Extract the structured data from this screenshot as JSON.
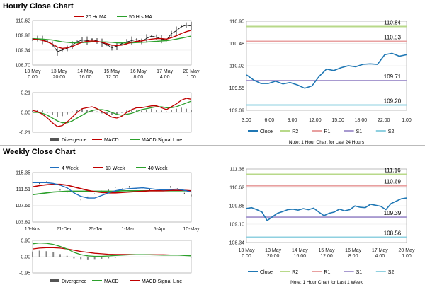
{
  "titles": {
    "hourly": "Hourly Close Chart",
    "weekly": "Weekly Close Chart"
  },
  "colors": {
    "ma_short": "#c00000",
    "ma_long": "#2ca02c",
    "week4": "#1f6fbf",
    "close": "#1f77b4",
    "r2": "#b8d98a",
    "r1": "#e8a0a0",
    "s1": "#a89ad0",
    "s2": "#8fd0e0",
    "price": "#000000",
    "divergence": "#888888"
  },
  "chart_data": [
    {
      "id": "hourly_price",
      "type": "line",
      "title": "Hourly Close Chart",
      "legend": [
        "20 Hr MA",
        "50 Hrs MA"
      ],
      "yticks": [
        "110.62",
        "109.98",
        "109.34",
        "108.70"
      ],
      "ylim": [
        108.7,
        110.62
      ],
      "xticks": [
        "13 May\n0:00",
        "13 May\n20:00",
        "14 May\n16:00",
        "15 May\n12:00",
        "16 May\n8:00",
        "17 May\n4:00",
        "20 May\n1:00"
      ],
      "series": [
        {
          "name": "Close",
          "values": [
            109.8,
            109.84,
            109.78,
            109.72,
            109.6,
            109.28,
            109.35,
            109.42,
            109.55,
            109.7,
            109.78,
            109.75,
            109.8,
            109.74,
            109.66,
            109.58,
            109.45,
            109.52,
            109.62,
            109.7,
            109.75,
            109.8,
            109.72,
            109.85,
            109.95,
            109.9,
            109.82,
            109.78,
            110.05,
            110.18,
            110.35,
            110.42,
            110.38
          ]
        },
        {
          "name": "20 Hr MA",
          "values": [
            109.82,
            109.8,
            109.76,
            109.7,
            109.6,
            109.48,
            109.42,
            109.44,
            109.5,
            109.6,
            109.68,
            109.72,
            109.74,
            109.72,
            109.68,
            109.62,
            109.56,
            109.54,
            109.56,
            109.62,
            109.68,
            109.72,
            109.74,
            109.78,
            109.82,
            109.84,
            109.84,
            109.82,
            109.88,
            109.96,
            110.06,
            110.14,
            110.2
          ]
        },
        {
          "name": "50 Hrs MA",
          "values": [
            109.84,
            109.83,
            109.82,
            109.8,
            109.78,
            109.74,
            109.7,
            109.68,
            109.66,
            109.66,
            109.67,
            109.68,
            109.7,
            109.7,
            109.7,
            109.69,
            109.68,
            109.66,
            109.65,
            109.65,
            109.66,
            109.67,
            109.68,
            109.69,
            109.71,
            109.72,
            109.74,
            109.75,
            109.78,
            109.82,
            109.86,
            109.9,
            109.95
          ]
        }
      ]
    },
    {
      "id": "hourly_macd",
      "type": "line",
      "legend": [
        "Divergence",
        "MACD",
        "MACD Signal Line"
      ],
      "yticks": [
        "0.21",
        "0.00",
        "-0.21"
      ],
      "ylim": [
        -0.21,
        0.21
      ],
      "series": [
        {
          "name": "Divergence",
          "values": [
            0.02,
            0.03,
            0.02,
            0.0,
            -0.03,
            -0.05,
            -0.04,
            -0.02,
            0.01,
            0.03,
            0.04,
            0.03,
            0.02,
            0.01,
            -0.01,
            -0.02,
            -0.03,
            -0.02,
            0.0,
            0.02,
            0.03,
            0.03,
            0.02,
            0.03,
            0.04,
            0.03,
            0.02,
            0.01,
            0.03,
            0.04,
            0.05,
            0.04,
            0.03
          ]
        },
        {
          "name": "MACD",
          "values": [
            0.02,
            0.01,
            -0.02,
            -0.06,
            -0.11,
            -0.15,
            -0.14,
            -0.1,
            -0.05,
            0.0,
            0.04,
            0.05,
            0.06,
            0.04,
            0.01,
            -0.02,
            -0.05,
            -0.06,
            -0.04,
            0.0,
            0.03,
            0.05,
            0.05,
            0.06,
            0.07,
            0.07,
            0.05,
            0.03,
            0.06,
            0.09,
            0.13,
            0.15,
            0.14
          ]
        },
        {
          "name": "MACD Signal Line",
          "values": [
            0.0,
            0.0,
            -0.01,
            -0.03,
            -0.06,
            -0.09,
            -0.11,
            -0.11,
            -0.09,
            -0.06,
            -0.03,
            0.0,
            0.02,
            0.03,
            0.03,
            0.02,
            0.0,
            -0.02,
            -0.03,
            -0.02,
            -0.01,
            0.01,
            0.03,
            0.04,
            0.05,
            0.06,
            0.06,
            0.05,
            0.05,
            0.06,
            0.08,
            0.1,
            0.12
          ]
        }
      ]
    },
    {
      "id": "hourly_24h",
      "type": "line",
      "yticks": [
        "110.95",
        "110.48",
        "110.02",
        "109.55",
        "109.09"
      ],
      "ylim": [
        109.09,
        110.95
      ],
      "xticks": [
        "3:00",
        "6:00",
        "9:00",
        "12:00",
        "15:00",
        "18:00",
        "22:00",
        "1:00"
      ],
      "levels": [
        {
          "name": "R2",
          "value": 110.84,
          "label": "110.84"
        },
        {
          "name": "R1",
          "value": 110.53,
          "label": "110.53"
        },
        {
          "name": "S1",
          "value": 109.71,
          "label": "109.71"
        },
        {
          "name": "S2",
          "value": 109.2,
          "label": "109.20"
        }
      ],
      "series": [
        {
          "name": "Close",
          "values": [
            109.83,
            109.72,
            109.65,
            109.65,
            109.7,
            109.64,
            109.67,
            109.62,
            109.55,
            109.6,
            109.8,
            109.95,
            109.92,
            109.98,
            110.02,
            110.0,
            110.05,
            110.06,
            110.05,
            110.25,
            110.28,
            110.22,
            110.25
          ]
        }
      ],
      "legend": [
        "Close",
        "R2",
        "R1",
        "S1",
        "S2"
      ],
      "note": "Note: 1 Hour Chart for Last 24 Hours"
    },
    {
      "id": "weekly_price",
      "type": "line",
      "title": "Weekly Close Chart",
      "legend": [
        "4 Week",
        "13 Week",
        "40 Week"
      ],
      "yticks": [
        "115.35",
        "111.51",
        "107.66",
        "103.82"
      ],
      "ylim": [
        103.82,
        115.35
      ],
      "xticks": [
        "16-Nov",
        "21-Dec",
        "25-Jan",
        "1-Mar",
        "5-Apr",
        "10-May"
      ],
      "series": [
        {
          "name": "Close",
          "values": [
            113.0,
            112.8,
            113.1,
            112.5,
            111.3,
            110.8,
            108.2,
            109.0,
            109.6,
            110.4,
            111.0,
            111.2,
            111.8,
            111.5,
            112.0,
            111.6,
            111.8,
            111.2,
            111.0,
            111.4,
            112.0,
            111.6,
            110.5,
            110.0
          ]
        },
        {
          "name": "4 Week",
          "values": [
            113.0,
            113.0,
            113.0,
            112.8,
            112.4,
            111.8,
            110.6,
            109.8,
            109.4,
            109.4,
            110.0,
            110.6,
            111.1,
            111.4,
            111.6,
            111.7,
            111.8,
            111.6,
            111.4,
            111.3,
            111.4,
            111.5,
            111.2,
            110.8
          ]
        },
        {
          "name": "13 Week",
          "values": [
            112.0,
            112.3,
            112.5,
            112.6,
            112.6,
            112.4,
            112.0,
            111.6,
            111.2,
            110.9,
            110.7,
            110.6,
            110.6,
            110.7,
            110.8,
            110.9,
            111.0,
            111.1,
            111.1,
            111.1,
            111.2,
            111.2,
            111.2,
            111.1
          ]
        },
        {
          "name": "40 Week",
          "values": [
            110.2,
            110.4,
            110.6,
            110.8,
            110.9,
            111.0,
            111.0,
            111.0,
            111.0,
            111.0,
            111.0,
            111.0,
            111.0,
            111.1,
            111.1,
            111.1,
            111.1,
            111.1,
            111.1,
            111.1,
            111.1,
            111.1,
            111.1,
            111.1
          ]
        }
      ]
    },
    {
      "id": "weekly_macd",
      "type": "line",
      "legend": [
        "Divergence",
        "MACD",
        "MACD Signal Line"
      ],
      "yticks": [
        "0.95",
        "0.00",
        "-0.95"
      ],
      "ylim": [
        -0.95,
        0.95
      ],
      "series": [
        {
          "name": "Divergence",
          "values": [
            0.3,
            0.35,
            0.32,
            0.25,
            0.15,
            0.05,
            -0.1,
            -0.18,
            -0.2,
            -0.18,
            -0.15,
            -0.1,
            -0.06,
            -0.04,
            -0.02,
            0.0,
            0.0,
            -0.01,
            -0.02,
            -0.02,
            0.0,
            0.0,
            -0.03,
            -0.05
          ]
        },
        {
          "name": "MACD",
          "values": [
            0.75,
            0.8,
            0.78,
            0.72,
            0.6,
            0.45,
            0.25,
            0.12,
            0.05,
            0.02,
            0.02,
            0.04,
            0.07,
            0.09,
            0.11,
            0.12,
            0.12,
            0.11,
            0.1,
            0.09,
            0.09,
            0.09,
            0.07,
            0.05
          ]
        },
        {
          "name": "MACD Signal Line",
          "values": [
            0.45,
            0.5,
            0.52,
            0.52,
            0.5,
            0.45,
            0.38,
            0.3,
            0.25,
            0.2,
            0.17,
            0.14,
            0.13,
            0.13,
            0.13,
            0.12,
            0.12,
            0.12,
            0.11,
            0.11,
            0.1,
            0.1,
            0.09,
            0.09
          ]
        }
      ]
    },
    {
      "id": "weekly_week",
      "type": "line",
      "yticks": [
        "111.38",
        "110.62",
        "109.86",
        "109.10",
        "108.34"
      ],
      "ylim": [
        108.34,
        111.38
      ],
      "xticks": [
        "13 May\n0:00",
        "13 May\n20:00",
        "14 May\n16:00",
        "15 May\n12:00",
        "16 May\n8:00",
        "17 May\n4:00",
        "20 May\n1:00"
      ],
      "levels": [
        {
          "name": "R2",
          "value": 111.16,
          "label": "111.16"
        },
        {
          "name": "R1",
          "value": 110.69,
          "label": "110.69"
        },
        {
          "name": "S1",
          "value": 109.39,
          "label": "109.39"
        },
        {
          "name": "S2",
          "value": 108.56,
          "label": "108.56"
        }
      ],
      "series": [
        {
          "name": "Close",
          "values": [
            109.75,
            109.78,
            109.7,
            109.6,
            109.25,
            109.4,
            109.55,
            109.62,
            109.7,
            109.72,
            109.68,
            109.74,
            109.7,
            109.76,
            109.6,
            109.45,
            109.55,
            109.6,
            109.72,
            109.65,
            109.7,
            109.85,
            109.8,
            109.78,
            109.92,
            109.88,
            109.84,
            109.7,
            109.95,
            110.05,
            110.15,
            110.18
          ]
        }
      ],
      "legend": [
        "Close",
        "R2",
        "R1",
        "S1",
        "S2"
      ],
      "note": "Note: 1 Hour Chart for Last 1 Week"
    }
  ]
}
